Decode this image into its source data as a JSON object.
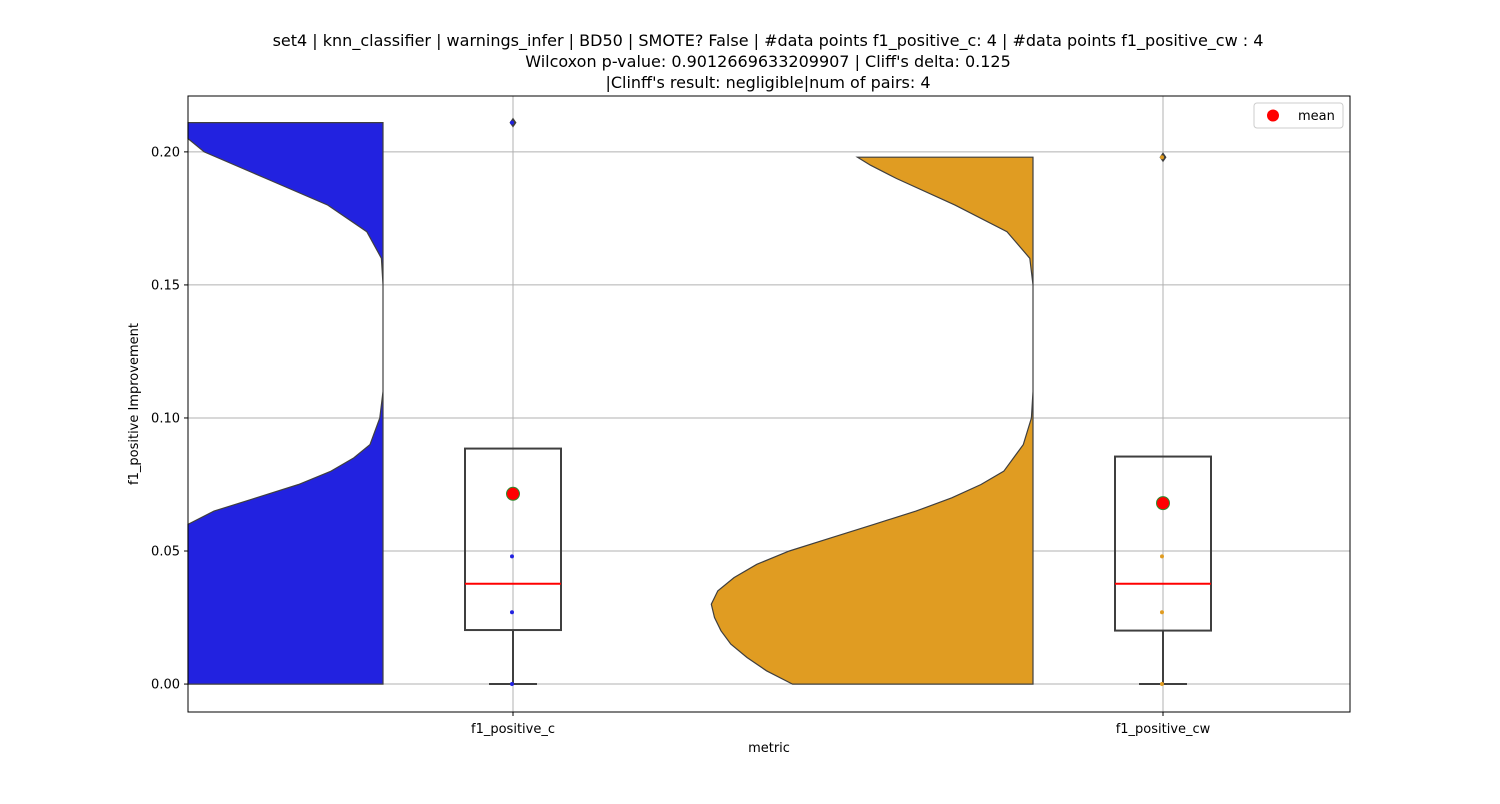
{
  "chart_data": {
    "type": "violin",
    "title_lines": [
      "set4 | knn_classifier | warnings_infer | BD50 | SMOTE? False | #data points f1_positive_c: 4 | #data points f1_positive_cw : 4",
      "Wilcoxon p-value: 0.9012669633209907 | Cliff's delta: 0.125",
      "|Clinff's result: negligible|num of pairs: 4"
    ],
    "xlabel": "metric",
    "ylabel": "f1_positive Improvement",
    "categories": [
      "f1_positive_c",
      "f1_positive_cw"
    ],
    "ylim": [
      -0.0105,
      0.221
    ],
    "yticks": [
      0.0,
      0.05,
      0.1,
      0.15,
      0.2
    ],
    "ytick_labels": [
      "0.00",
      "0.05",
      "0.10",
      "0.15",
      "0.20"
    ],
    "grid": true,
    "legend": {
      "placement": "top-right",
      "entries": [
        {
          "label": "mean",
          "color": "#ff0000"
        }
      ]
    },
    "series": [
      {
        "category": "f1_positive_c",
        "color": "#2222e0",
        "points": [
          0.0,
          0.027,
          0.048,
          0.211
        ],
        "box": {
          "whisker_low": 0.0,
          "q1": 0.0203,
          "median": 0.0377,
          "q3": 0.0885,
          "whisker_high": 0.0885
        },
        "outliers": [
          0.211
        ],
        "mean": 0.0715,
        "violin_density": [
          [
            0.0,
            0.85
          ],
          [
            0.005,
            0.95
          ],
          [
            0.01,
            1.02
          ],
          [
            0.015,
            1.06
          ],
          [
            0.02,
            1.08
          ],
          [
            0.025,
            1.08
          ],
          [
            0.03,
            1.06
          ],
          [
            0.035,
            1.03
          ],
          [
            0.04,
            1.0
          ],
          [
            0.045,
            0.98
          ],
          [
            0.05,
            0.9
          ],
          [
            0.055,
            0.79
          ],
          [
            0.06,
            0.67
          ],
          [
            0.065,
            0.52
          ],
          [
            0.07,
            0.39
          ],
          [
            0.075,
            0.26
          ],
          [
            0.08,
            0.16
          ],
          [
            0.085,
            0.09
          ],
          [
            0.09,
            0.04
          ],
          [
            0.1,
            0.01
          ],
          [
            0.11,
            0.0
          ],
          [
            0.15,
            0.0
          ],
          [
            0.16,
            0.005
          ],
          [
            0.17,
            0.05
          ],
          [
            0.18,
            0.17
          ],
          [
            0.19,
            0.36
          ],
          [
            0.2,
            0.55
          ],
          [
            0.205,
            0.65
          ],
          [
            0.211,
            0.7
          ]
        ]
      },
      {
        "category": "f1_positive_cw",
        "color": "#e09c22",
        "points": [
          0.0,
          0.027,
          0.048,
          0.198
        ],
        "box": {
          "whisker_low": 0.0,
          "q1": 0.0201,
          "median": 0.0377,
          "q3": 0.0855,
          "whisker_high": 0.0855
        },
        "outliers": [
          0.198
        ],
        "mean": 0.068,
        "violin_density": [
          [
            0.0,
            0.74
          ],
          [
            0.005,
            0.82
          ],
          [
            0.01,
            0.88
          ],
          [
            0.015,
            0.93
          ],
          [
            0.02,
            0.96
          ],
          [
            0.025,
            0.98
          ],
          [
            0.03,
            0.99
          ],
          [
            0.035,
            0.97
          ],
          [
            0.04,
            0.92
          ],
          [
            0.045,
            0.85
          ],
          [
            0.05,
            0.75
          ],
          [
            0.055,
            0.62
          ],
          [
            0.06,
            0.49
          ],
          [
            0.065,
            0.36
          ],
          [
            0.07,
            0.25
          ],
          [
            0.075,
            0.16
          ],
          [
            0.08,
            0.09
          ],
          [
            0.09,
            0.03
          ],
          [
            0.1,
            0.005
          ],
          [
            0.11,
            0.0
          ],
          [
            0.15,
            0.0
          ],
          [
            0.16,
            0.01
          ],
          [
            0.17,
            0.08
          ],
          [
            0.18,
            0.24
          ],
          [
            0.19,
            0.42
          ],
          [
            0.195,
            0.5
          ],
          [
            0.198,
            0.54
          ]
        ]
      }
    ]
  }
}
